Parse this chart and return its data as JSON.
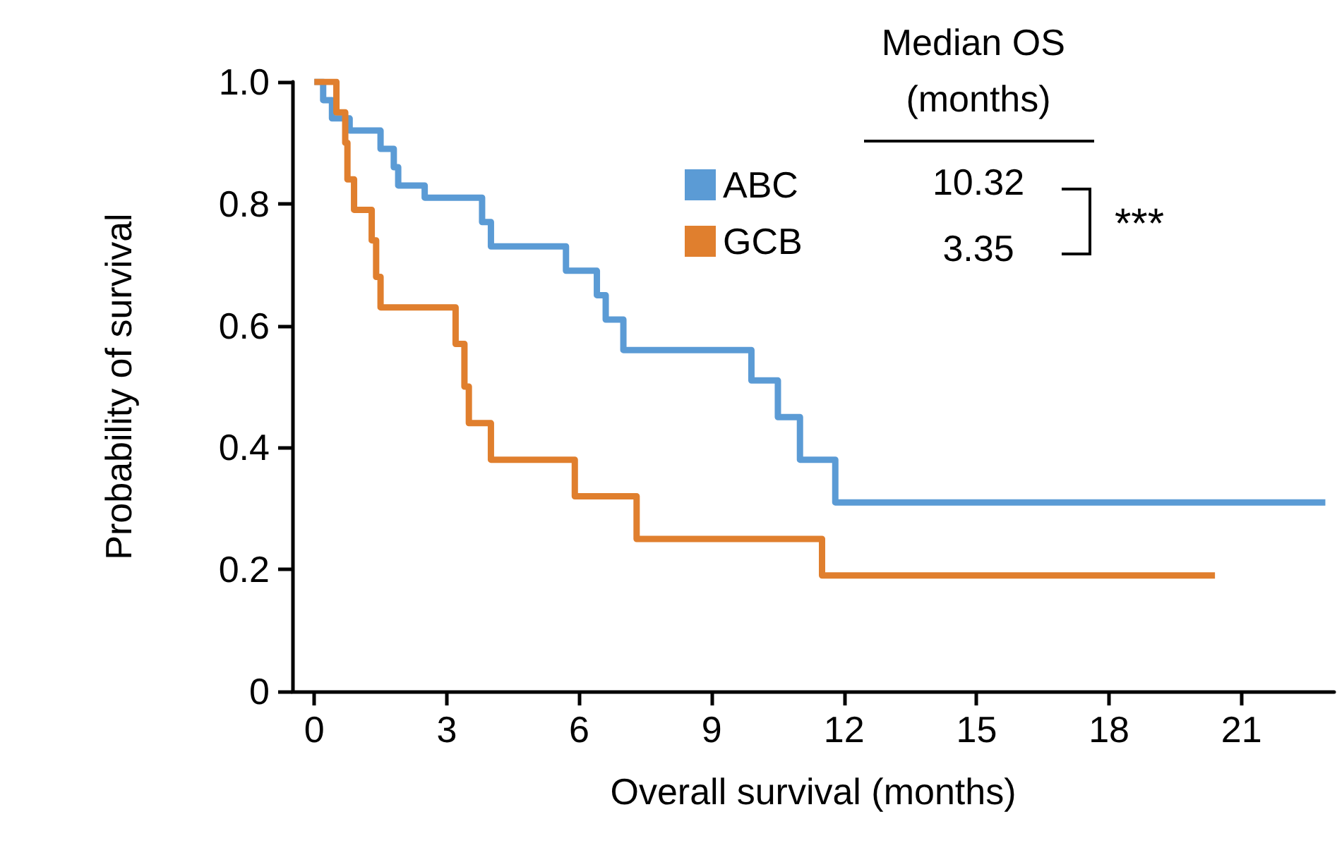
{
  "chart_data": {
    "type": "step",
    "xlabel": "Overall survival (months)",
    "ylabel": "Probability of survival",
    "series": [
      {
        "name": "ABC",
        "color": "#5b9bd5",
        "x": [
          0,
          0.2,
          0.4,
          0.8,
          1.5,
          1.8,
          1.9,
          2.5,
          3.8,
          4.0,
          5.7,
          6.4,
          6.6,
          7.0,
          9.9,
          10.5,
          11.0,
          11.8,
          22.9
        ],
        "values": [
          1,
          0.97,
          0.94,
          0.92,
          0.89,
          0.86,
          0.83,
          0.81,
          0.77,
          0.73,
          0.69,
          0.65,
          0.61,
          0.56,
          0.51,
          0.45,
          0.38,
          0.31,
          0.31
        ]
      },
      {
        "name": "GCB",
        "color": "#e07f2e",
        "x": [
          0,
          0.5,
          0.7,
          0.75,
          0.9,
          1.3,
          1.4,
          1.5,
          3.2,
          3.4,
          3.5,
          4.0,
          5.9,
          7.3,
          11.5,
          20.4
        ],
        "values": [
          1,
          0.95,
          0.9,
          0.84,
          0.79,
          0.74,
          0.68,
          0.63,
          0.57,
          0.5,
          0.44,
          0.38,
          0.32,
          0.25,
          0.19,
          0.19
        ]
      }
    ],
    "xlim": [
      -0.5,
      23.1
    ],
    "xticks": [
      0,
      3,
      6,
      9,
      12,
      15,
      18,
      21
    ],
    "ylim": [
      0,
      1
    ],
    "yticks": [
      0,
      0.2,
      0.4,
      0.6,
      0.8,
      {
        "value": 1,
        "label": "1.0"
      }
    ],
    "legend": "top",
    "grid": false,
    "marker": "none",
    "line_style": "solid",
    "annotations": [
      "Median OS (months)",
      "10.32",
      "3.35",
      "***"
    ]
  }
}
